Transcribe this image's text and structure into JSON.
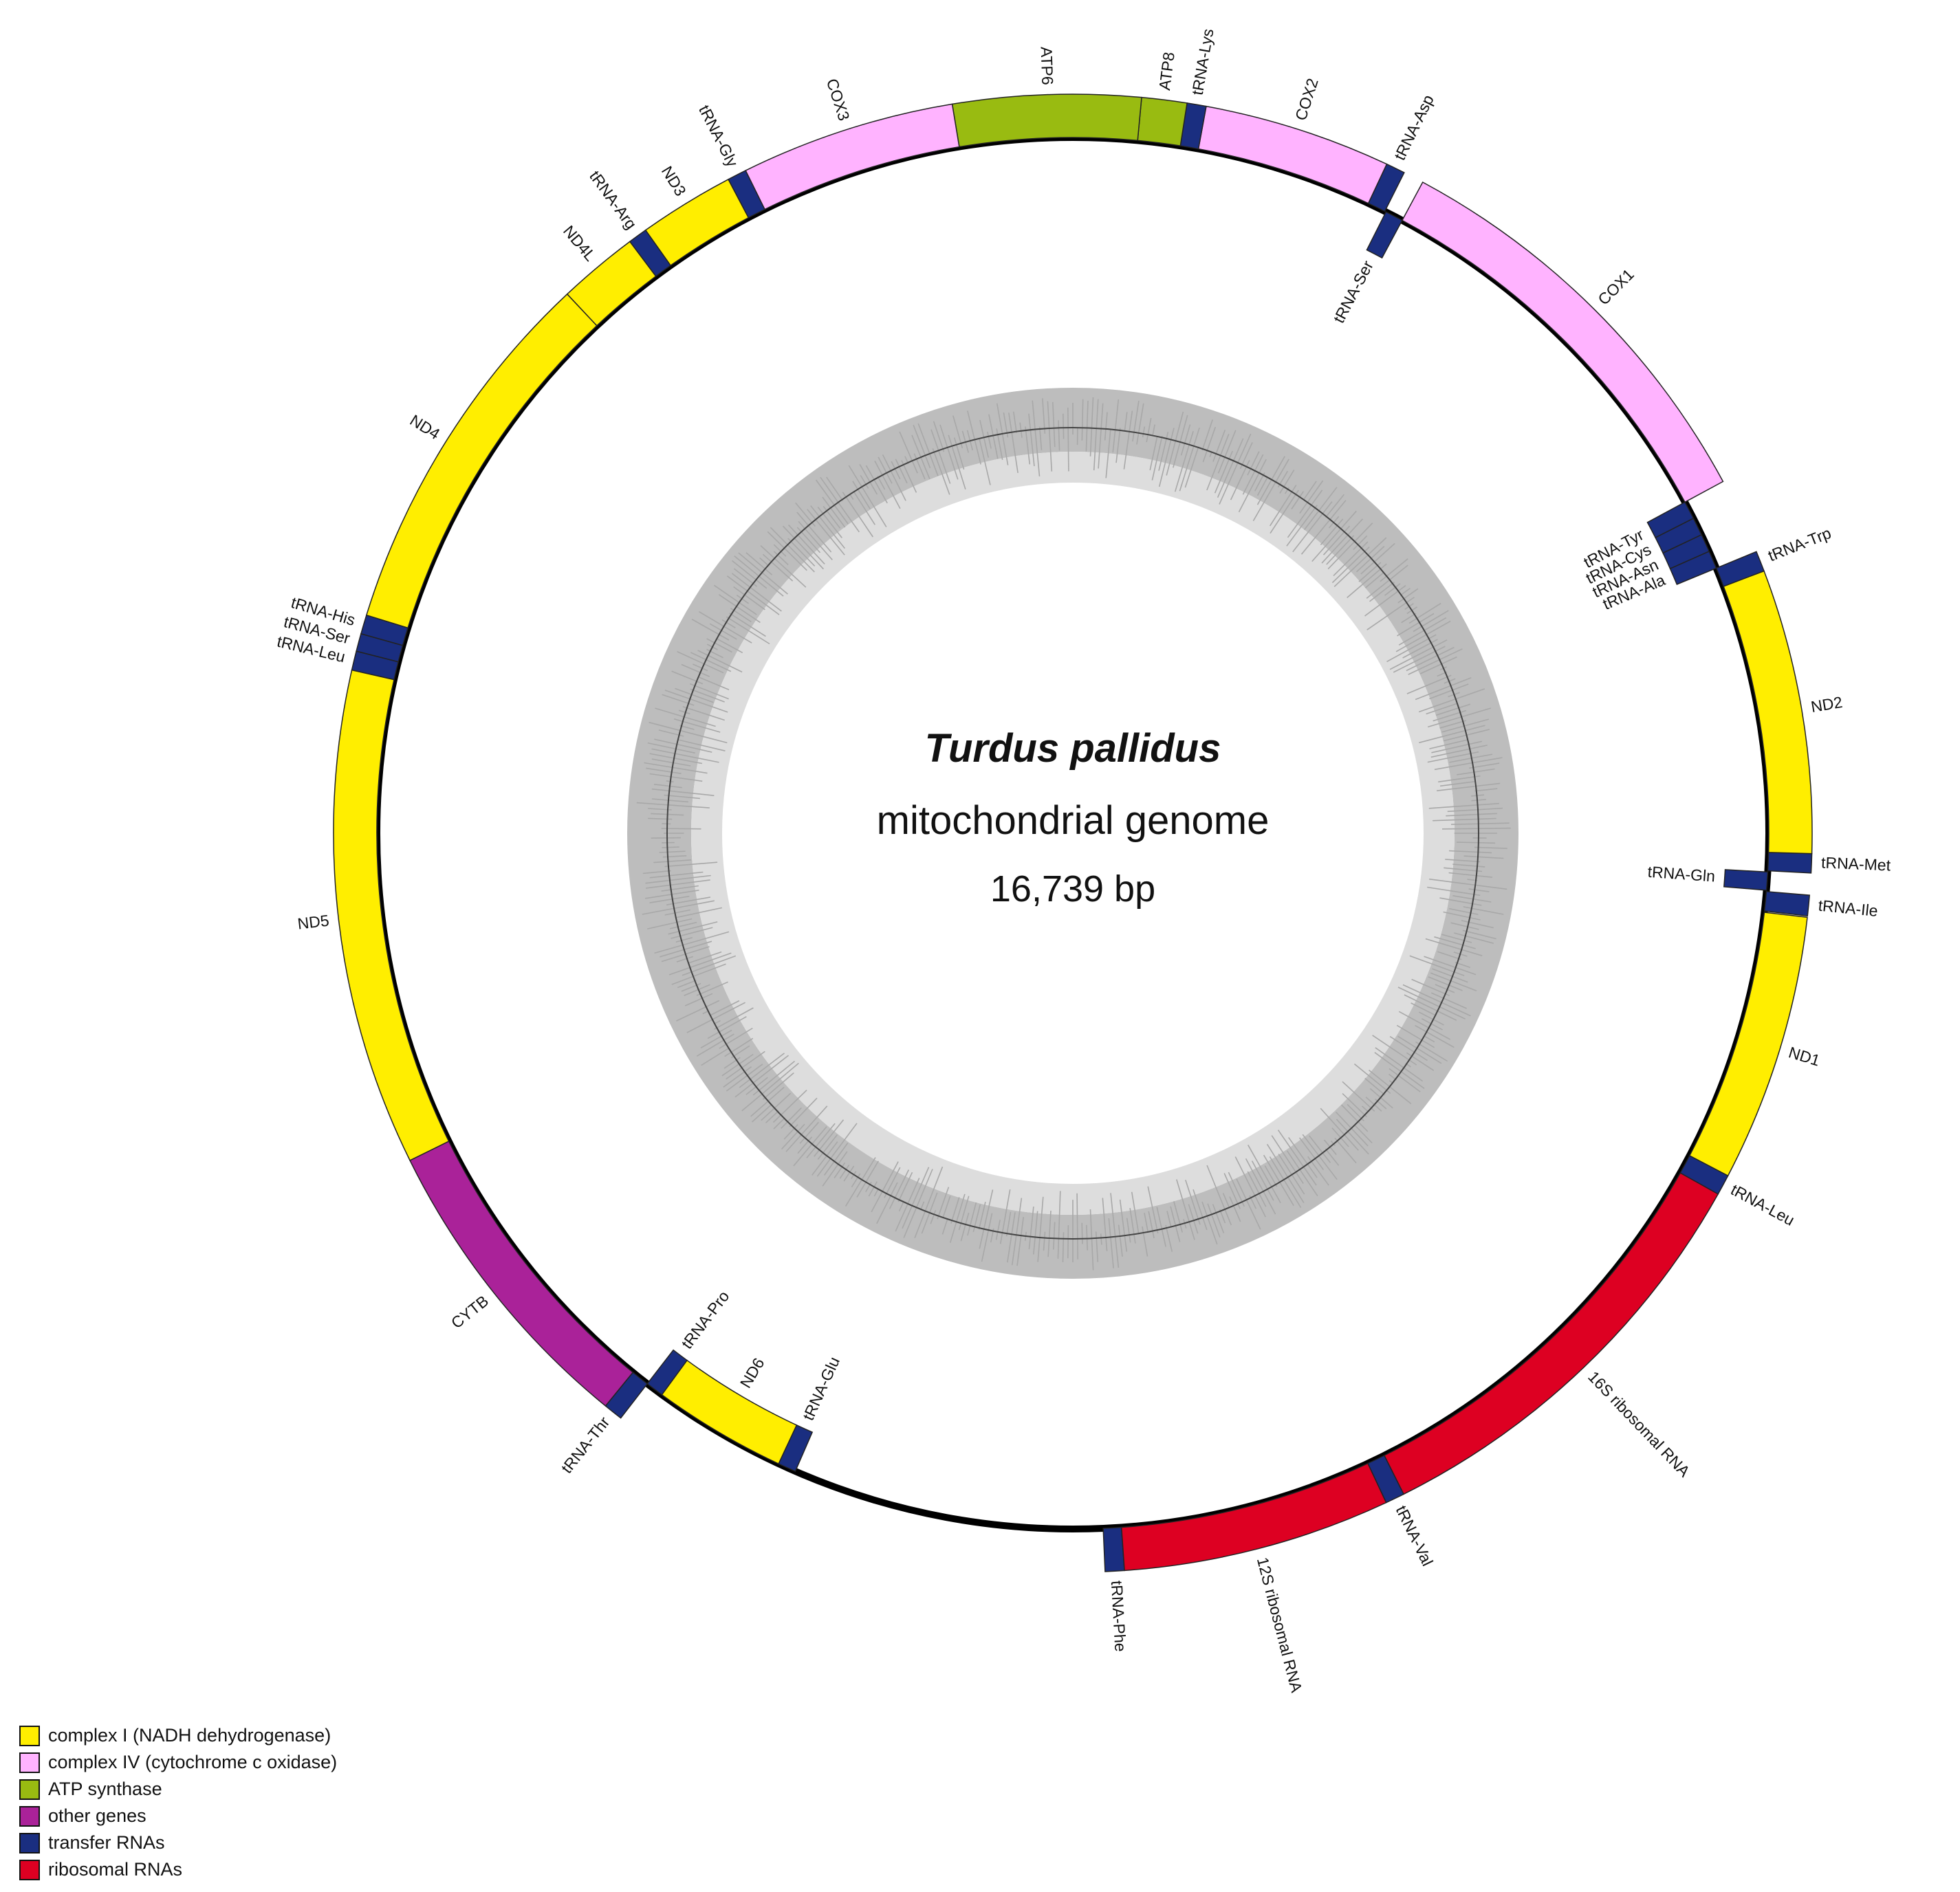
{
  "title": {
    "species": "Turdus pallidus",
    "genome_type": "mitochondrial genome",
    "size": "16,739 bp"
  },
  "categories": {
    "complex1": {
      "label": "complex I (NADH dehydrogenase)",
      "color": "#FFEE00"
    },
    "complex4": {
      "label": "complex IV (cytochrome c oxidase)",
      "color": "#FFB3FF"
    },
    "atp": {
      "label": "ATP synthase",
      "color": "#99BB11"
    },
    "other": {
      "label": "other genes",
      "color": "#AA2299"
    },
    "trna": {
      "label": "transfer RNAs",
      "color": "#1A2E80"
    },
    "rrna": {
      "label": "ribosomal RNAs",
      "color": "#DD0022"
    }
  },
  "legend_order": [
    "complex1",
    "complex4",
    "atp",
    "other",
    "trna",
    "rrna"
  ],
  "genes": [
    {
      "name": "tRNA-Phe",
      "cat": "trna",
      "strand": "outer",
      "start": 0,
      "end": 70
    },
    {
      "name": "12S ribosomal RNA",
      "cat": "rrna",
      "strand": "outer",
      "start": 70,
      "end": 1050
    },
    {
      "name": "tRNA-Val",
      "cat": "trna",
      "strand": "outer",
      "start": 1050,
      "end": 1120
    },
    {
      "name": "16S ribosomal RNA",
      "cat": "rrna",
      "strand": "outer",
      "start": 1120,
      "end": 2710
    },
    {
      "name": "tRNA-Leu",
      "cat": "trna",
      "strand": "outer",
      "start": 2710,
      "end": 2785
    },
    {
      "name": "ND1",
      "cat": "complex1",
      "strand": "outer",
      "start": 2785,
      "end": 3765
    },
    {
      "name": "tRNA-Ile",
      "cat": "trna",
      "strand": "outer",
      "start": 3770,
      "end": 3845
    },
    {
      "name": "tRNA-Gln",
      "cat": "trna",
      "strand": "inner",
      "start": 3850,
      "end": 3920
    },
    {
      "name": "tRNA-Met",
      "cat": "trna",
      "strand": "outer",
      "start": 3925,
      "end": 3995
    },
    {
      "name": "ND2",
      "cat": "complex1",
      "strand": "outer",
      "start": 3995,
      "end": 5035
    },
    {
      "name": "tRNA-Trp",
      "cat": "trna",
      "strand": "outer",
      "start": 5035,
      "end": 5110
    },
    {
      "name": "tRNA-Ala",
      "cat": "trna",
      "strand": "inner",
      "start": 5110,
      "end": 5180
    },
    {
      "name": "tRNA-Asn",
      "cat": "trna",
      "strand": "inner",
      "start": 5180,
      "end": 5250
    },
    {
      "name": "tRNA-Cys",
      "cat": "trna",
      "strand": "inner",
      "start": 5250,
      "end": 5320
    },
    {
      "name": "tRNA-Tyr",
      "cat": "trna",
      "strand": "inner",
      "start": 5320,
      "end": 5390
    },
    {
      "name": "COX1",
      "cat": "complex4",
      "strand": "outer",
      "start": 5390,
      "end": 6940
    },
    {
      "name": "tRNA-Ser",
      "cat": "trna",
      "strand": "inner",
      "start": 6940,
      "end": 7010
    },
    {
      "name": "tRNA-Asp",
      "cat": "trna",
      "strand": "outer",
      "start": 7015,
      "end": 7085
    },
    {
      "name": "COX2",
      "cat": "complex4",
      "strand": "outer",
      "start": 7085,
      "end": 7770
    },
    {
      "name": "tRNA-Lys",
      "cat": "trna",
      "strand": "outer",
      "start": 7770,
      "end": 7840
    },
    {
      "name": "ATP8",
      "cat": "atp",
      "strand": "outer",
      "start": 7840,
      "end": 8005
    },
    {
      "name": "ATP6",
      "cat": "atp",
      "strand": "outer",
      "start": 8005,
      "end": 8690
    },
    {
      "name": "COX3",
      "cat": "complex4",
      "strand": "outer",
      "start": 8690,
      "end": 9475
    },
    {
      "name": "tRNA-Gly",
      "cat": "trna",
      "strand": "outer",
      "start": 9475,
      "end": 9545
    },
    {
      "name": "ND3",
      "cat": "complex1",
      "strand": "outer",
      "start": 9545,
      "end": 9895
    },
    {
      "name": "tRNA-Arg",
      "cat": "trna",
      "strand": "outer",
      "start": 9895,
      "end": 9965
    },
    {
      "name": "ND4L",
      "cat": "complex1",
      "strand": "outer",
      "start": 9965,
      "end": 10260
    },
    {
      "name": "ND4",
      "cat": "complex1",
      "strand": "outer",
      "start": 10260,
      "end": 11640
    },
    {
      "name": "tRNA-His",
      "cat": "trna",
      "strand": "outer",
      "start": 11640,
      "end": 11710
    },
    {
      "name": "tRNA-Ser",
      "cat": "trna",
      "strand": "outer",
      "start": 11710,
      "end": 11775
    },
    {
      "name": "tRNA-Leu",
      "cat": "trna",
      "strand": "outer",
      "start": 11775,
      "end": 11845
    },
    {
      "name": "ND5",
      "cat": "complex1",
      "strand": "outer",
      "start": 11845,
      "end": 13660
    },
    {
      "name": "CYTB",
      "cat": "other",
      "strand": "outer",
      "start": 13660,
      "end": 14800
    },
    {
      "name": "tRNA-Thr",
      "cat": "trna",
      "strand": "outer",
      "start": 14800,
      "end": 14870
    },
    {
      "name": "tRNA-Pro",
      "cat": "trna",
      "strand": "inner",
      "start": 14870,
      "end": 14940
    },
    {
      "name": "ND6",
      "cat": "complex1",
      "strand": "inner",
      "start": 14940,
      "end": 15460
    },
    {
      "name": "tRNA-Glu",
      "cat": "trna",
      "strand": "inner",
      "start": 15460,
      "end": 15530
    }
  ]
}
